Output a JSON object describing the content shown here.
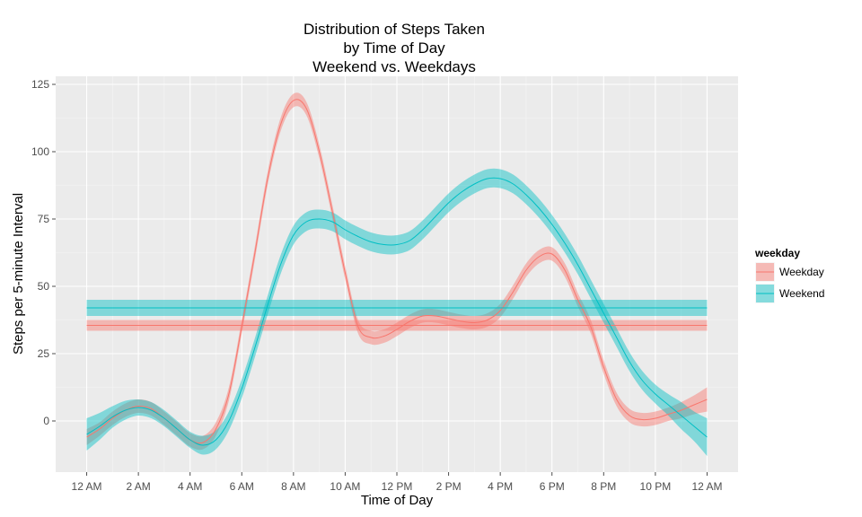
{
  "chart_data": {
    "type": "line",
    "title": [
      "Distribution of Steps Taken",
      "by Time of Day",
      "Weekend vs. Weekdays"
    ],
    "xlabel": "Time of Day",
    "ylabel": "Steps per 5-minute Interval",
    "xlim_hours": [
      -1.2,
      25.2
    ],
    "ylim": [
      -19,
      128
    ],
    "x_ticks_hours": [
      0,
      2,
      4,
      6,
      8,
      10,
      12,
      14,
      16,
      18,
      20,
      22,
      24
    ],
    "x_tick_labels": [
      "12 AM",
      "2 AM",
      "4 AM",
      "6 AM",
      "8 AM",
      "10 AM",
      "12 PM",
      "2 PM",
      "4 PM",
      "6 PM",
      "8 PM",
      "10 PM",
      "12 AM"
    ],
    "y_ticks": [
      0,
      25,
      50,
      75,
      100,
      125
    ],
    "y_tick_labels": [
      "0",
      "25",
      "50",
      "75",
      "100",
      "125"
    ],
    "grid": true,
    "legend": {
      "title": "weekday",
      "placement": "right",
      "entries": [
        "Weekday",
        "Weekend"
      ]
    },
    "colors": {
      "Weekday": "#F8766D",
      "Weekend": "#00BFC4",
      "panel_background": "#EBEBEB",
      "grid": "#FFFFFF"
    },
    "series": [
      {
        "name": "Weekday",
        "smooth": {
          "x": [
            0,
            0.5,
            1,
            1.5,
            2,
            2.5,
            3,
            3.5,
            4,
            4.5,
            5,
            5.5,
            6,
            6.5,
            7,
            7.5,
            8,
            8.5,
            9,
            9.5,
            10,
            10.5,
            11,
            11.5,
            12,
            12.5,
            13,
            13.5,
            14,
            14.5,
            15,
            15.5,
            16,
            16.5,
            17,
            17.5,
            18,
            18.5,
            19,
            19.5,
            20,
            20.5,
            21,
            21.5,
            22,
            22.5,
            23,
            23.5,
            24
          ],
          "y": [
            -6,
            -3,
            1,
            4,
            5.5,
            4.5,
            1,
            -3,
            -7,
            -8,
            -3,
            10,
            35,
            62,
            90,
            110,
            119,
            116,
            100,
            78,
            55,
            35,
            31,
            31.5,
            34,
            37,
            39,
            39,
            38,
            37,
            36.5,
            37.5,
            41,
            48,
            56,
            61,
            62,
            56,
            45,
            35,
            20,
            8,
            2,
            0.5,
            1,
            2.5,
            4,
            6,
            8
          ],
          "band": [
            3,
            2.5,
            2.5,
            2.5,
            2.5,
            2.5,
            2.5,
            2.5,
            2.5,
            2.5,
            2.5,
            2.5,
            2.5,
            2.5,
            2.5,
            2.5,
            2.5,
            2.5,
            2.5,
            2.5,
            2.5,
            2.5,
            2.5,
            2.5,
            2.5,
            2.5,
            2.5,
            2.5,
            2.5,
            2.5,
            2.5,
            2.5,
            2.5,
            2.5,
            2.5,
            2.5,
            2.5,
            2.5,
            2.5,
            2.5,
            2.5,
            2.5,
            2.5,
            2.5,
            2.5,
            2.5,
            3,
            3.5,
            4.5
          ]
        },
        "mean": {
          "x": [
            0,
            24
          ],
          "y": [
            35.5,
            35.5
          ],
          "band": 2
        }
      },
      {
        "name": "Weekend",
        "smooth": {
          "x": [
            0,
            0.5,
            1,
            1.5,
            2,
            2.5,
            3,
            3.5,
            4,
            4.5,
            5,
            5.5,
            6,
            6.5,
            7,
            7.5,
            8,
            8.5,
            9,
            9.5,
            10,
            10.5,
            11,
            11.5,
            12,
            12.5,
            13,
            13.5,
            14,
            14.5,
            15,
            15.5,
            16,
            16.5,
            17,
            17.5,
            18,
            18.5,
            19,
            19.5,
            20,
            20.5,
            21,
            21.5,
            22,
            22.5,
            23,
            23.5,
            24
          ],
          "y": [
            -5,
            -2,
            1.5,
            4,
            5,
            4,
            1,
            -3,
            -7,
            -9,
            -7,
            0,
            12,
            27,
            43,
            58,
            69,
            74,
            75,
            74,
            71,
            68.5,
            66.5,
            65.5,
            65.5,
            67,
            71,
            76,
            81,
            85,
            88,
            90,
            90,
            88,
            84,
            79,
            73,
            66,
            58,
            49,
            40,
            31,
            22,
            15,
            10,
            6,
            2,
            -2,
            -6
          ],
          "band": [
            6,
            5,
            4,
            3.5,
            3,
            3,
            3,
            3,
            3,
            3.5,
            3.5,
            3.5,
            3.5,
            3.5,
            3.5,
            3.5,
            3.5,
            3.5,
            3.5,
            3.5,
            3.5,
            3.5,
            3.5,
            3.5,
            3.5,
            3.5,
            3.5,
            3.5,
            3.5,
            3.5,
            3.5,
            3.5,
            3.5,
            3.5,
            3.5,
            3.5,
            3.5,
            3.5,
            3.5,
            3.5,
            3.5,
            3.5,
            3.5,
            3.5,
            3.5,
            4,
            5,
            5.5,
            7
          ]
        },
        "mean": {
          "x": [
            0,
            24
          ],
          "y": [
            42,
            42
          ],
          "band": 3
        }
      }
    ]
  }
}
